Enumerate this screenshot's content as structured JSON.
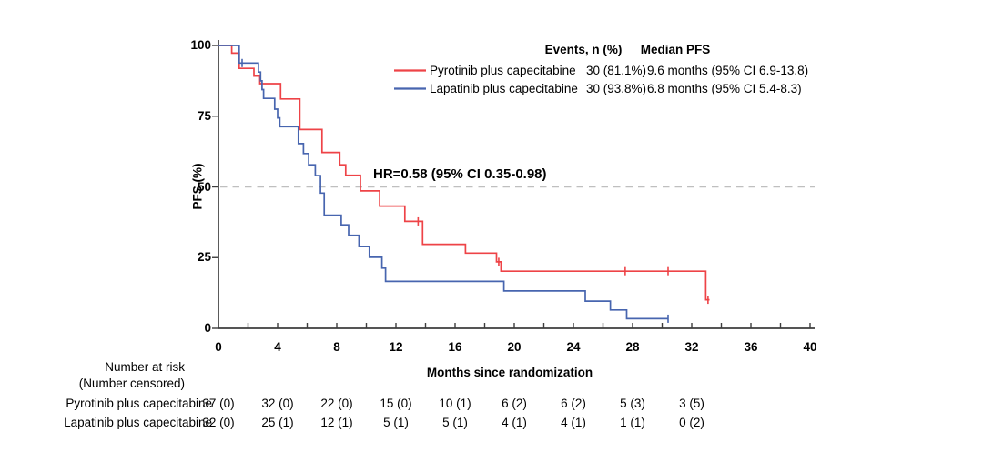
{
  "chart_data": {
    "type": "line",
    "subtype": "kaplan-meier-step",
    "title": "",
    "xlabel": "Months since randomization",
    "ylabel": "PFS (%)",
    "xlim": [
      0,
      40
    ],
    "ylim": [
      0,
      100
    ],
    "x_axis": {
      "major_ticks": [
        0,
        4,
        8,
        12,
        16,
        20,
        24,
        28,
        32,
        36,
        40
      ],
      "minor_tick_step": 2
    },
    "y_axis": {
      "ticks": [
        0,
        25,
        50,
        75,
        100
      ]
    },
    "grid": "off",
    "reference_line": {
      "y": 50,
      "style": "dashed",
      "color": "#bfbfbf"
    },
    "annotation": "HR=0.58 (95% CI 0.35-0.98)",
    "legend": {
      "position": "top-right",
      "events_header": "Events, n (%)",
      "median_header": "Median PFS"
    },
    "series": [
      {
        "name": "Pyrotinib plus capecitabine",
        "color": "#ee4347",
        "events": "30 (81.1%)",
        "median": "9.6 months (95% CI 6.9-13.8)",
        "steps": [
          [
            0,
            100
          ],
          [
            0.9,
            97.3
          ],
          [
            1.4,
            91.9
          ],
          [
            2.4,
            89.2
          ],
          [
            2.8,
            86.5
          ],
          [
            4.2,
            81.1
          ],
          [
            5.5,
            70.3
          ],
          [
            7.0,
            62.2
          ],
          [
            8.2,
            57.8
          ],
          [
            8.6,
            54.1
          ],
          [
            9.6,
            48.6
          ],
          [
            10.9,
            43.2
          ],
          [
            12.6,
            37.8
          ],
          [
            13.8,
            29.7
          ],
          [
            16.7,
            26.6
          ],
          [
            18.8,
            23.5
          ],
          [
            19.1,
            20.2
          ],
          [
            32.95,
            10.1
          ]
        ],
        "end_month": 33.2,
        "censor_marks": [
          [
            13.5,
            37.8
          ],
          [
            18.95,
            23.5
          ],
          [
            27.5,
            20.2
          ],
          [
            30.4,
            20.2
          ],
          [
            33.1,
            10.1
          ]
        ]
      },
      {
        "name": "Lapatinib plus capecitabine",
        "color": "#4765af",
        "events": "30 (93.8%)",
        "median": "6.8 months (95% CI 5.4-8.3)",
        "steps": [
          [
            0,
            100
          ],
          [
            1.4,
            93.8
          ],
          [
            2.7,
            90.6
          ],
          [
            2.85,
            87.5
          ],
          [
            2.95,
            84.4
          ],
          [
            3.05,
            81.3
          ],
          [
            3.8,
            77.5
          ],
          [
            4.0,
            74.4
          ],
          [
            4.15,
            71.3
          ],
          [
            5.4,
            65.3
          ],
          [
            5.75,
            61.8
          ],
          [
            6.1,
            57.8
          ],
          [
            6.55,
            54.0
          ],
          [
            6.9,
            47.8
          ],
          [
            7.15,
            40.0
          ],
          [
            8.3,
            36.6
          ],
          [
            8.8,
            32.9
          ],
          [
            9.5,
            28.9
          ],
          [
            10.2,
            25.1
          ],
          [
            11.05,
            21.3
          ],
          [
            11.3,
            16.6
          ],
          [
            19.3,
            13.2
          ],
          [
            24.8,
            9.6
          ],
          [
            26.5,
            6.5
          ],
          [
            27.6,
            3.4
          ]
        ],
        "end_month": 30.4,
        "censor_marks": [
          [
            1.6,
            93.8
          ],
          [
            30.4,
            3.4
          ]
        ]
      }
    ],
    "risk_table": {
      "header_line1": "Number at risk",
      "header_line2": "(Number censored)",
      "months": [
        0,
        4,
        8,
        12,
        16,
        20,
        24,
        28,
        32
      ],
      "rows": [
        {
          "name": "Pyrotinib plus capecitabine",
          "values": [
            "37 (0)",
            "32 (0)",
            "22 (0)",
            "15 (0)",
            "10 (1)",
            "6 (2)",
            "6 (2)",
            "5 (3)",
            "3 (5)"
          ]
        },
        {
          "name": "Lapatinib plus capecitabine",
          "values": [
            "32 (0)",
            "25 (1)",
            "12 (1)",
            "5 (1)",
            "5 (1)",
            "4 (1)",
            "4 (1)",
            "1 (1)",
            "0 (2)"
          ]
        }
      ]
    }
  }
}
